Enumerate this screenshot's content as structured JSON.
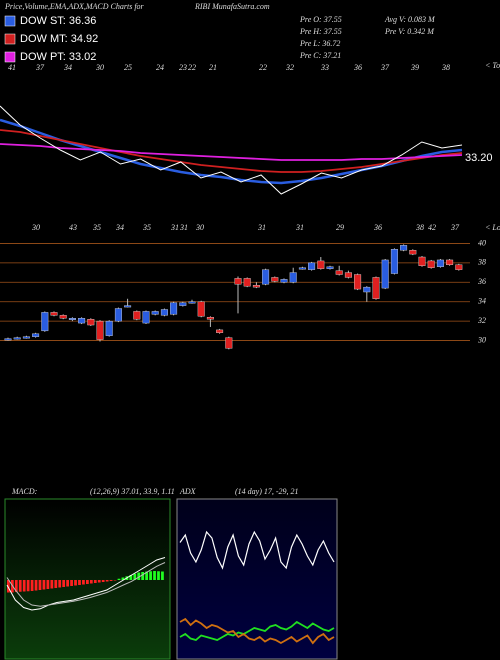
{
  "header": {
    "title": "Price,Volume,EMA,ADX,MACD Charts for",
    "symbol": "RIBI MunafaSutra.com",
    "stats": [
      "Pre  O: 37.55",
      "Pre  H: 37.55",
      "Pre  L: 36.72",
      "Pre  C: 37.21",
      "Avg V: 0.083 M",
      "Pre  V: 0.342 M"
    ]
  },
  "chart_data": [
    {
      "type": "line",
      "ylim": [
        29,
        42
      ],
      "last_label": {
        "value": 33.2,
        "label": "33.20"
      },
      "tops_label": "< Tops",
      "lows_label": "< Lows",
      "top_labels": [
        "41",
        "37",
        "34",
        "30",
        "25",
        "24",
        "23",
        "22",
        "21",
        "22",
        "32",
        "33",
        "36",
        "37",
        "39",
        "38"
      ],
      "bottom_labels": [
        "30",
        "43",
        "35",
        "34",
        "35",
        "31",
        "31",
        "30",
        "31",
        "31",
        "29",
        "36",
        "38",
        "42",
        "37"
      ],
      "price": {
        "color": "#ffffff",
        "values": [
          38.4,
          36.5,
          35.2,
          34.0,
          33.0,
          33.8,
          32.6,
          33.1,
          32.0,
          32.8,
          31.2,
          31.8,
          30.8,
          31.5,
          29.6,
          30.6,
          31.7,
          31.2,
          32.0,
          32.4,
          33.5,
          34.8,
          34.2,
          34.5
        ]
      },
      "series": [
        {
          "name": "DOW ST: 36.36",
          "color": "#2a5de0",
          "values": [
            37.0,
            36.4,
            35.7,
            35.0,
            34.4,
            33.8,
            33.2,
            32.6,
            32.2,
            31.8,
            31.5,
            31.3,
            31.0,
            30.8,
            30.7,
            30.9,
            31.2,
            31.6,
            32.0,
            32.4,
            32.9,
            33.4,
            33.8,
            34.0
          ]
        },
        {
          "name": "DOW MT: 34.92",
          "color": "#d02020",
          "values": [
            36.0,
            35.8,
            35.4,
            35.0,
            34.6,
            34.2,
            33.8,
            33.4,
            33.1,
            32.8,
            32.5,
            32.3,
            32.1,
            31.9,
            31.8,
            31.8,
            31.9,
            32.1,
            32.3,
            32.6,
            32.9,
            33.2,
            33.5,
            33.7
          ]
        },
        {
          "name": "DOW PT: 33.02",
          "color": "#e020e0",
          "values": [
            34.6,
            34.5,
            34.4,
            34.2,
            34.1,
            34.0,
            33.9,
            33.7,
            33.6,
            33.5,
            33.4,
            33.3,
            33.2,
            33.1,
            33.0,
            33.0,
            33.0,
            33.0,
            33.1,
            33.1,
            33.2,
            33.3,
            33.4,
            33.5
          ]
        }
      ]
    },
    {
      "type": "candlestick",
      "ylim": [
        28,
        42
      ],
      "yticks": [
        30,
        32,
        34,
        36,
        38,
        40
      ],
      "grid": true,
      "grid_color": "#a0521a",
      "up_color": "#2a5de0",
      "down_color": "#e02020",
      "open": [
        30.1,
        30.2,
        30.3,
        30.4,
        31.0,
        32.9,
        32.6,
        32.2,
        31.8,
        32.2,
        32.0,
        30.5,
        32.0,
        33.5,
        33.0,
        31.8,
        32.7,
        32.6,
        32.7,
        33.6,
        33.9,
        34.0,
        32.4,
        31.1,
        30.3,
        36.4,
        36.4,
        35.7,
        35.8,
        36.5,
        36.0,
        36.0,
        37.4,
        37.3,
        38.2,
        37.4,
        37.2,
        37.0,
        36.8,
        35.0,
        36.5,
        35.4,
        36.9,
        39.3,
        39.3,
        38.6,
        38.2,
        37.6,
        38.3,
        37.8
      ],
      "high": [
        30.3,
        30.4,
        30.5,
        30.8,
        33.0,
        33.0,
        32.7,
        32.4,
        32.4,
        32.3,
        32.1,
        32.1,
        33.4,
        34.3,
        33.1,
        33.1,
        33.1,
        33.3,
        34.0,
        34.0,
        34.2,
        34.1,
        32.5,
        31.2,
        30.4,
        36.6,
        36.5,
        36.0,
        37.4,
        36.6,
        36.4,
        37.5,
        37.6,
        38.1,
        38.6,
        37.7,
        37.7,
        37.2,
        36.9,
        35.6,
        36.6,
        38.4,
        39.5,
        39.9,
        39.4,
        38.7,
        38.3,
        38.4,
        38.4,
        37.9
      ],
      "low": [
        30.0,
        30.1,
        30.2,
        30.3,
        30.9,
        32.5,
        32.2,
        32.0,
        31.7,
        31.5,
        29.9,
        30.4,
        31.9,
        33.4,
        32.1,
        31.7,
        32.6,
        32.5,
        32.6,
        33.5,
        33.8,
        32.4,
        31.4,
        30.7,
        29.1,
        32.8,
        35.5,
        35.4,
        35.7,
        36.0,
        35.9,
        35.9,
        37.3,
        37.2,
        37.3,
        37.3,
        36.7,
        36.4,
        35.2,
        34.0,
        34.2,
        35.3,
        36.8,
        39.2,
        38.8,
        37.6,
        37.4,
        37.5,
        37.7,
        37.2
      ],
      "close": [
        30.2,
        30.3,
        30.4,
        30.7,
        32.9,
        32.6,
        32.3,
        32.3,
        32.3,
        31.6,
        30.1,
        32.0,
        33.3,
        33.6,
        32.2,
        33.0,
        33.0,
        33.2,
        33.9,
        33.9,
        34.0,
        32.5,
        32.2,
        30.8,
        29.2,
        35.8,
        35.6,
        35.5,
        37.3,
        36.1,
        36.3,
        37.0,
        37.5,
        38.0,
        37.4,
        37.6,
        36.8,
        36.5,
        35.3,
        35.5,
        34.3,
        38.3,
        39.4,
        39.8,
        38.9,
        37.7,
        37.5,
        38.3,
        37.8,
        37.3
      ]
    },
    {
      "type": "macd",
      "title": "MACD:",
      "subtitle": "(12,26,9) 37.01, 33.9, 1.11",
      "ylim": [
        -3,
        3
      ],
      "neg_color": "#ff2020",
      "pos_color": "#20ff20",
      "histogram": [
        -0.5,
        -0.5,
        -0.48,
        -0.47,
        -0.46,
        -0.45,
        -0.44,
        -0.42,
        -0.4,
        -0.38,
        -0.36,
        -0.34,
        -0.32,
        -0.3,
        -0.28,
        -0.26,
        -0.24,
        -0.22,
        -0.2,
        -0.18,
        -0.16,
        -0.14,
        -0.12,
        -0.1,
        -0.08,
        -0.06,
        -0.04,
        -0.02,
        0.05,
        0.1,
        0.15,
        0.2,
        0.25,
        0.3,
        0.32,
        0.34,
        0.35,
        0.36,
        0.35,
        0.34
      ],
      "series": [
        {
          "color": "#ffffff",
          "values": [
            -0.2,
            -0.8,
            -1.1,
            -1.2,
            -1.15,
            -1.0,
            -0.9,
            -0.85,
            -0.8,
            -0.7,
            -0.6,
            -0.5,
            -0.4,
            -0.2,
            0.0,
            0.2,
            0.4,
            0.6,
            0.8,
            0.9
          ]
        },
        {
          "color": "#bbbbbb",
          "values": [
            0.1,
            -0.4,
            -0.8,
            -1.0,
            -1.05,
            -1.0,
            -0.95,
            -0.9,
            -0.85,
            -0.78,
            -0.7,
            -0.6,
            -0.5,
            -0.35,
            -0.2,
            -0.05,
            0.15,
            0.35,
            0.55,
            0.7
          ]
        }
      ]
    },
    {
      "type": "adx",
      "title": "ADX",
      "subtitle": "(14 day) 17, -29, 21",
      "ylim": [
        0,
        100
      ],
      "series": [
        {
          "color": "#ffffff",
          "values": [
            75,
            80,
            68,
            62,
            70,
            82,
            78,
            65,
            58,
            72,
            80,
            66,
            60,
            74,
            82,
            76,
            64,
            70,
            78,
            62,
            58,
            72,
            80,
            74,
            66,
            60,
            70,
            76,
            68,
            62
          ]
        },
        {
          "color": "#20e020",
          "values": [
            12,
            14,
            11,
            10,
            13,
            12,
            11,
            10,
            12,
            14,
            13,
            15,
            14,
            16,
            18,
            17,
            16,
            19,
            20,
            18,
            17,
            19,
            22,
            20,
            18,
            21,
            19,
            17,
            16,
            18
          ]
        },
        {
          "color": "#d07010",
          "values": [
            22,
            24,
            20,
            23,
            21,
            18,
            20,
            19,
            17,
            15,
            16,
            12,
            14,
            11,
            10,
            12,
            9,
            11,
            10,
            8,
            10,
            12,
            9,
            11,
            13,
            8,
            12,
            14,
            10,
            12
          ]
        }
      ]
    }
  ]
}
